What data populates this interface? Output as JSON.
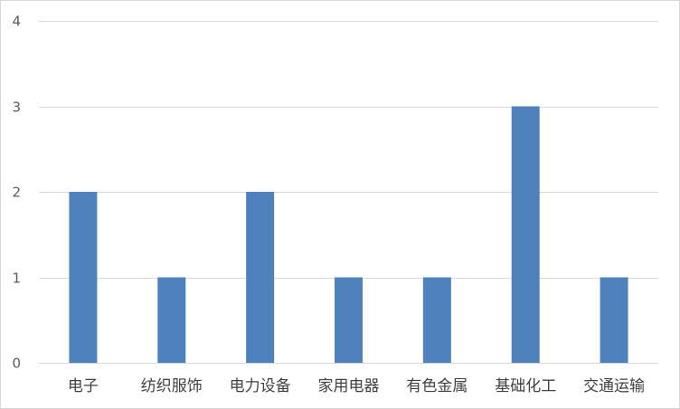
{
  "chart_data": {
    "type": "bar",
    "categories": [
      "电子",
      "纺织服饰",
      "电力设备",
      "家用电器",
      "有色金属",
      "基础化工",
      "交通运输"
    ],
    "values": [
      2,
      1,
      2,
      1,
      1,
      3,
      1
    ],
    "title": "",
    "xlabel": "",
    "ylabel": "",
    "ylim": [
      0,
      4
    ],
    "yticks": [
      0,
      1,
      2,
      3,
      4
    ],
    "grid": true,
    "legend": "none",
    "bar_color": "#4f81bd",
    "grid_color": "#d9d9d9"
  }
}
